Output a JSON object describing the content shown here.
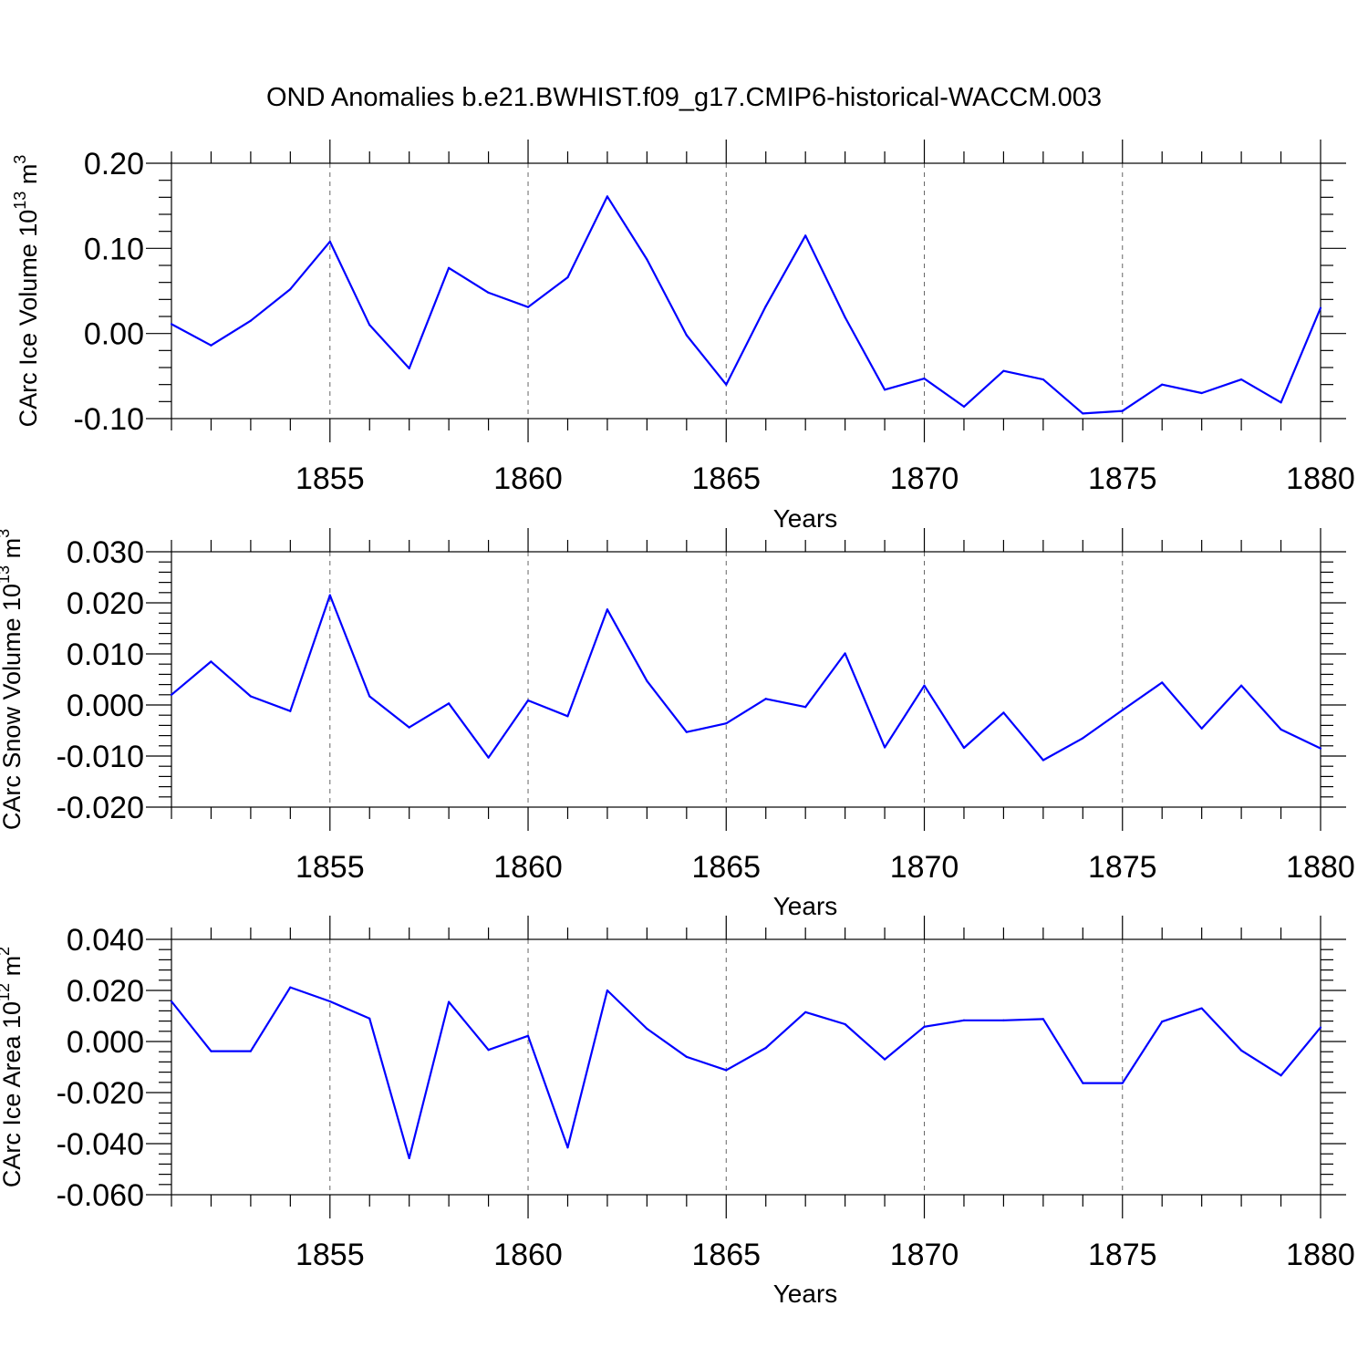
{
  "title": "OND Anomalies b.e21.BWHIST.f09_g17.CMIP6-historical-WACCM.003",
  "colors": {
    "line": "#0000ff",
    "axis": "#000000",
    "grid": "#666666"
  },
  "chart_data": [
    {
      "type": "line",
      "title": "OND Anomalies b.e21.BWHIST.f09_g17.CMIP6-historical-WACCM.003",
      "xlabel": "Years",
      "ylabel": {
        "text": "CArc Ice Volume 10",
        "sup": "13",
        "unit": " m",
        "unit_sup": "3"
      },
      "xlim": [
        1851,
        1880
      ],
      "ylim": [
        -0.1,
        0.2
      ],
      "x_ticks": [
        1855,
        1860,
        1865,
        1870,
        1875,
        1880
      ],
      "y_ticks": [
        "-0.10",
        "0.00",
        "0.10",
        "0.20"
      ],
      "grid": "vertical dashed at major x ticks",
      "x": [
        1851,
        1852,
        1853,
        1854,
        1855,
        1856,
        1857,
        1858,
        1859,
        1860,
        1861,
        1862,
        1863,
        1864,
        1865,
        1866,
        1867,
        1868,
        1869,
        1870,
        1871,
        1872,
        1873,
        1874,
        1875,
        1876,
        1877,
        1878,
        1879,
        1880
      ],
      "values": [
        0.011,
        -0.014,
        0.015,
        0.052,
        0.108,
        0.01,
        -0.041,
        0.077,
        0.048,
        0.031,
        0.066,
        0.161,
        0.087,
        -0.002,
        -0.06,
        0.032,
        0.115,
        0.019,
        -0.066,
        -0.053,
        -0.086,
        -0.044,
        -0.054,
        -0.094,
        -0.091,
        -0.06,
        -0.07,
        -0.054,
        -0.081,
        0.03
      ]
    },
    {
      "type": "line",
      "xlabel": "Years",
      "ylabel": {
        "text": "CArc Snow Volume 10",
        "sup": "13",
        "unit": " m",
        "unit_sup": "3"
      },
      "xlim": [
        1851,
        1880
      ],
      "ylim": [
        -0.02,
        0.03
      ],
      "x_ticks": [
        1855,
        1860,
        1865,
        1870,
        1875,
        1880
      ],
      "y_ticks": [
        "-0.020",
        "-0.010",
        "0.000",
        "0.010",
        "0.020",
        "0.030"
      ],
      "grid": "vertical dashed at major x ticks",
      "x": [
        1851,
        1852,
        1853,
        1854,
        1855,
        1856,
        1857,
        1858,
        1859,
        1860,
        1861,
        1862,
        1863,
        1864,
        1865,
        1866,
        1867,
        1868,
        1869,
        1870,
        1871,
        1872,
        1873,
        1874,
        1875,
        1876,
        1877,
        1878,
        1879,
        1880
      ],
      "values": [
        0.002,
        0.0085,
        0.0017,
        -0.0012,
        0.0215,
        0.0017,
        -0.0044,
        0.0003,
        -0.0103,
        0.0009,
        -0.0022,
        0.0187,
        0.0047,
        -0.0053,
        -0.0036,
        0.0012,
        -0.0004,
        0.0101,
        -0.0083,
        0.0038,
        -0.0084,
        -0.0015,
        -0.0108,
        -0.0065,
        -0.001,
        0.0044,
        -0.0046,
        0.0038,
        -0.0048,
        -0.0085
      ]
    },
    {
      "type": "line",
      "xlabel": "Years",
      "ylabel": {
        "text": "CArc Ice Area 10",
        "sup": "12",
        "unit": " m",
        "unit_sup": "2"
      },
      "xlim": [
        1851,
        1880
      ],
      "ylim": [
        -0.06,
        0.04
      ],
      "x_ticks": [
        1855,
        1860,
        1865,
        1870,
        1875,
        1880
      ],
      "y_ticks": [
        "-0.060",
        "-0.040",
        "-0.020",
        "0.000",
        "0.020",
        "0.040"
      ],
      "grid": "vertical dashed at major x ticks",
      "x": [
        1851,
        1852,
        1853,
        1854,
        1855,
        1856,
        1857,
        1858,
        1859,
        1860,
        1861,
        1862,
        1863,
        1864,
        1865,
        1866,
        1867,
        1868,
        1869,
        1870,
        1871,
        1872,
        1873,
        1874,
        1875,
        1876,
        1877,
        1878,
        1879,
        1880
      ],
      "values": [
        0.0157,
        -0.0038,
        -0.0038,
        0.0212,
        0.0157,
        0.009,
        -0.0457,
        0.0155,
        -0.0033,
        0.0022,
        -0.0415,
        0.02,
        0.005,
        -0.006,
        -0.0112,
        -0.0025,
        0.0115,
        0.0068,
        -0.007,
        0.0058,
        0.0083,
        0.0083,
        0.0088,
        -0.0163,
        -0.0163,
        0.0078,
        0.013,
        -0.0035,
        -0.0133,
        0.0055
      ]
    }
  ]
}
